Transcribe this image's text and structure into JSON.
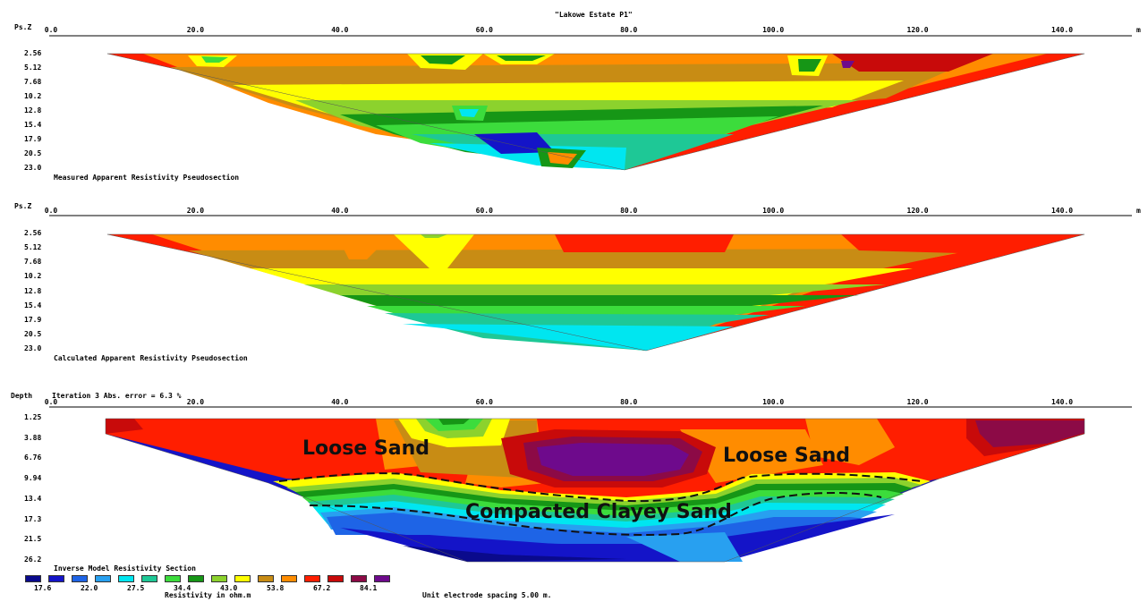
{
  "title": "\"Lakowe Estate P1\"",
  "x_unit": "m",
  "x_ticks": [
    "0.0",
    "20.0",
    "40.0",
    "60.0",
    "80.0",
    "100.0",
    "120.0",
    "140.0"
  ],
  "x_tick_values": [
    0,
    20,
    40,
    60,
    80,
    100,
    120,
    140
  ],
  "colors": {
    "c1": "#0a0a8c",
    "c2": "#1414c8",
    "c3": "#1e64e6",
    "c4": "#28a0f0",
    "c5": "#00e6f0",
    "c6": "#1ec896",
    "c7": "#3cdc3c",
    "c8": "#169616",
    "c9": "#8cd22d",
    "c10": "#ffff00",
    "c11": "#c88c14",
    "c12": "#ff8c00",
    "c13": "#ff1e00",
    "c14": "#c80a0a",
    "c15": "#8c0a46",
    "c16": "#6e0a8c"
  },
  "chart_data": [
    {
      "type": "heatmap",
      "name": "measured",
      "ylabel": "Ps.Z",
      "y_ticks": [
        "2.56",
        "5.12",
        "7.68",
        "10.2",
        "12.8",
        "15.4",
        "17.9",
        "20.5",
        "23.0"
      ],
      "y_tick_values": [
        2.56,
        5.12,
        7.68,
        10.2,
        12.8,
        15.4,
        17.9,
        20.5,
        23.0
      ],
      "caption": "Measured Apparent Resistivity Pseudosection"
    },
    {
      "type": "heatmap",
      "name": "calculated",
      "ylabel": "Ps.Z",
      "y_ticks": [
        "2.56",
        "5.12",
        "7.68",
        "10.2",
        "12.8",
        "15.4",
        "17.9",
        "20.5",
        "23.0"
      ],
      "y_tick_values": [
        2.56,
        5.12,
        7.68,
        10.2,
        12.8,
        15.4,
        17.9,
        20.5,
        23.0
      ],
      "caption": "Calculated Apparent Resistivity Pseudosection"
    },
    {
      "type": "heatmap",
      "name": "inverse",
      "ylabel": "Depth",
      "iteration_text": "Iteration 3 Abs. error = 6.3 %",
      "y_ticks": [
        "1.25",
        "3.88",
        "6.76",
        "9.94",
        "13.4",
        "17.3",
        "21.5",
        "26.2"
      ],
      "y_tick_values": [
        1.25,
        3.88,
        6.76,
        9.94,
        13.4,
        17.3,
        21.5,
        26.2
      ],
      "caption": "Inverse Model Resistivity Section",
      "annotations": [
        "Loose Sand",
        "Loose Sand",
        "Compacted Clayey Sand"
      ]
    }
  ],
  "legend": {
    "title": "Resistivity in ohm.m",
    "values": [
      "17.6",
      "22.0",
      "27.5",
      "34.4",
      "43.0",
      "53.8",
      "67.2",
      "84.1"
    ]
  },
  "footer": "Unit electrode spacing 5.00 m."
}
